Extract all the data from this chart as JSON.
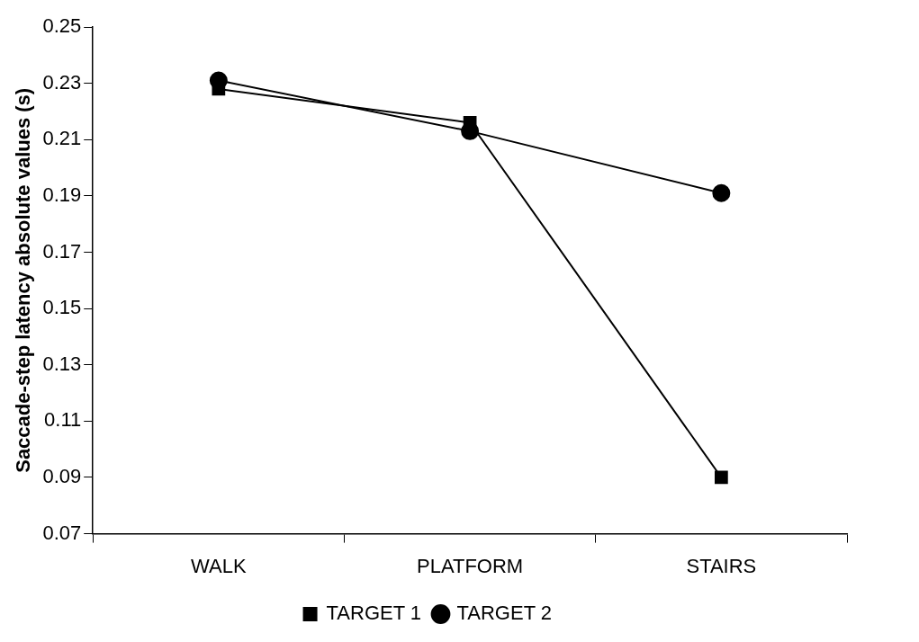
{
  "chart_data": {
    "type": "line",
    "ylabel": "Saccade-step latency absolute values (s)",
    "categories": [
      "WALK",
      "PLATFORM",
      "STAIRS"
    ],
    "series": [
      {
        "name": "TARGET 1",
        "color": "#000000",
        "marker": "square",
        "values": [
          0.228,
          0.216,
          0.09
        ]
      },
      {
        "name": "TARGET 2",
        "color": "#000000",
        "marker": "circle",
        "values": [
          0.231,
          0.213,
          0.191
        ]
      }
    ],
    "ylim": [
      0.07,
      0.25
    ],
    "yticks": [
      0.07,
      0.09,
      0.11,
      0.13,
      0.15,
      0.17,
      0.19,
      0.21,
      0.23,
      0.25
    ],
    "grid": false,
    "legend": "bottom",
    "line_style": "solid"
  }
}
